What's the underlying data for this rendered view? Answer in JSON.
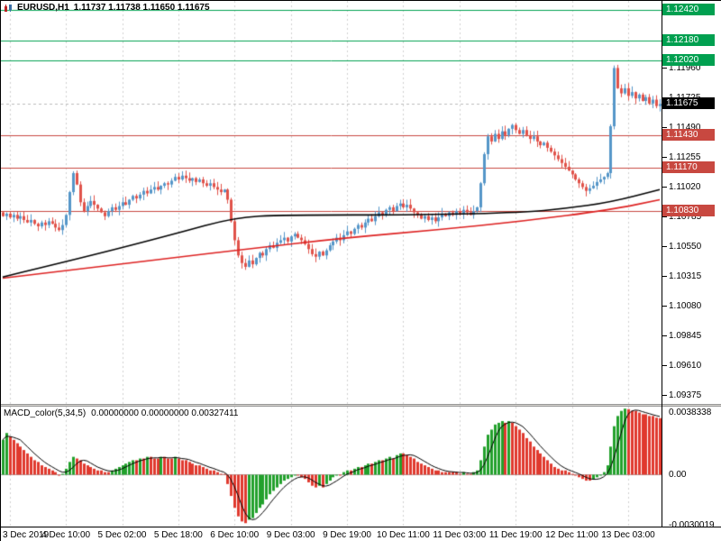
{
  "header": {
    "symbol": "EURUSD,H1",
    "ohlc": "1.11737 1.11738 1.11650 1.11675"
  },
  "macd_header": {
    "name": "MACD_color(5,34,5)",
    "values": "0.00000000 0.00000000 0.00327411"
  },
  "colors": {
    "bull": "#5596c8",
    "bear": "#e0524a",
    "macd_up": "#22a12c",
    "macd_down": "#e0392e",
    "level_green": "#00a050",
    "level_red": "#c84840",
    "price_box": "#000000",
    "grid": "#cfcfcf",
    "ma_fast": "#000000",
    "ma_slow": "#dd2222",
    "bid_line": "#bbbbbb",
    "zero_line": "#a8a8a8"
  },
  "chart_data": [
    {
      "type": "candlestick",
      "title": "EURUSD,H1",
      "symbol": "EURUSD",
      "timeframe": "H1",
      "open": 1.11737,
      "high": 1.11738,
      "low": 1.1165,
      "close": 1.11675,
      "price_range": [
        1.093,
        1.1249
      ],
      "x_labels": [
        "3 Dec 2019",
        "4 Dec 10:00",
        "5 Dec 02:00",
        "5 Dec 18:00",
        "6 Dec 10:00",
        "9 Dec 03:00",
        "9 Dec 19:00",
        "10 Dec 11:00",
        "11 Dec 03:00",
        "11 Dec 19:00",
        "12 Dec 11:00",
        "13 Dec 03:00"
      ],
      "y_ticks": [
        "1.11960",
        "1.11725",
        "1.11490",
        "1.11255",
        "1.11020",
        "1.10785",
        "1.10550",
        "1.10315",
        "1.10080",
        "1.09845",
        "1.09610",
        "1.09375"
      ],
      "levels": [
        {
          "label": "1.12420",
          "value": 1.1242,
          "color": "green"
        },
        {
          "label": "1.12180",
          "value": 1.1218,
          "color": "green"
        },
        {
          "label": "1.12020",
          "value": 1.1202,
          "color": "green"
        },
        {
          "label": "1.11430",
          "value": 1.1143,
          "color": "red"
        },
        {
          "label": "1.11170",
          "value": 1.1117,
          "color": "red"
        },
        {
          "label": "1.10830",
          "value": 1.1083,
          "color": "red"
        }
      ],
      "current_price": {
        "label": "1.11675",
        "value": 1.11675
      },
      "closes": [
        1.1079,
        1.1081,
        1.1078,
        1.108,
        1.1077,
        1.1079,
        1.1076,
        1.1074,
        1.1076,
        1.1073,
        1.1071,
        1.1074,
        1.1072,
        1.1075,
        1.1073,
        1.107,
        1.1068,
        1.1072,
        1.108,
        1.1098,
        1.1113,
        1.1104,
        1.109,
        1.1083,
        1.1087,
        1.1091,
        1.1088,
        1.1085,
        1.1082,
        1.1079,
        1.1083,
        1.1086,
        1.1084,
        1.1087,
        1.109,
        1.1088,
        1.1092,
        1.1095,
        1.1093,
        1.1096,
        1.1099,
        1.1097,
        1.11,
        1.1102,
        1.11,
        1.1103,
        1.1105,
        1.1104,
        1.1107,
        1.111,
        1.1108,
        1.1111,
        1.1109,
        1.1107,
        1.1109,
        1.1106,
        1.1108,
        1.1105,
        1.1103,
        1.1105,
        1.1102,
        1.11,
        1.1098,
        1.11,
        1.1092,
        1.1075,
        1.106,
        1.1048,
        1.1042,
        1.1039,
        1.1044,
        1.1041,
        1.1046,
        1.105,
        1.1048,
        1.1053,
        1.1056,
        1.1054,
        1.1058,
        1.106,
        1.1062,
        1.1059,
        1.1063,
        1.1065,
        1.1062,
        1.106,
        1.1057,
        1.1053,
        1.1049,
        1.1047,
        1.1051,
        1.1048,
        1.1052,
        1.1056,
        1.1059,
        1.1062,
        1.106,
        1.1064,
        1.1067,
        1.1065,
        1.1069,
        1.1072,
        1.107,
        1.1074,
        1.1077,
        1.1075,
        1.1079,
        1.1082,
        1.108,
        1.1084,
        1.1086,
        1.1083,
        1.1087,
        1.1089,
        1.1086,
        1.1088,
        1.1085,
        1.1082,
        1.108,
        1.1077,
        1.1079,
        1.1076,
        1.1078,
        1.1075,
        1.1078,
        1.1081,
        1.1079,
        1.1082,
        1.108,
        1.1083,
        1.1081,
        1.1084,
        1.1082,
        1.108,
        1.1083,
        1.1086,
        1.1105,
        1.1128,
        1.1142,
        1.1138,
        1.1144,
        1.114,
        1.1146,
        1.1143,
        1.1148,
        1.1151,
        1.1147,
        1.1144,
        1.1147,
        1.1143,
        1.114,
        1.1142,
        1.1138,
        1.1135,
        1.1137,
        1.1133,
        1.113,
        1.1127,
        1.1124,
        1.1121,
        1.1118,
        1.1115,
        1.1112,
        1.1108,
        1.1105,
        1.1102,
        1.1099,
        1.1101,
        1.1103,
        1.1106,
        1.1108,
        1.111,
        1.1113,
        1.115,
        1.1196,
        1.118,
        1.1176,
        1.118,
        1.1174,
        1.1177,
        1.1172,
        1.1175,
        1.117,
        1.1173,
        1.1168,
        1.1171,
        1.1166,
        1.11675
      ],
      "ma_black_keypoints": [
        [
          0,
          1.1031
        ],
        [
          24,
          1.1047
        ],
        [
          49,
          1.1065
        ],
        [
          66,
          1.1078
        ],
        [
          80,
          1.108
        ],
        [
          120,
          1.108
        ],
        [
          148,
          1.1082
        ],
        [
          160,
          1.1085
        ],
        [
          173,
          1.109
        ],
        [
          187,
          1.11
        ]
      ],
      "ma_red_keypoints": [
        [
          0,
          1.103
        ],
        [
          24,
          1.1038
        ],
        [
          48,
          1.1046
        ],
        [
          69,
          1.1053
        ],
        [
          98,
          1.1062
        ],
        [
          123,
          1.1068
        ],
        [
          148,
          1.1075
        ],
        [
          173,
          1.1084
        ],
        [
          187,
          1.1092
        ]
      ]
    },
    {
      "type": "bar",
      "name": "MACD_color(5,34,5)",
      "current_values": [
        0.0,
        0.0,
        0.00327411
      ],
      "range": [
        -0.0031,
        0.00395
      ],
      "y_labels": [
        {
          "label": "0.0038338",
          "value": 0.0038338
        },
        {
          "label": "0.00",
          "value": 0
        },
        {
          "label": "-0.0030019",
          "value": -0.0030019
        }
      ],
      "values": [
        0.002,
        0.0024,
        0.0022,
        0.002,
        0.0018,
        0.0016,
        0.0014,
        0.0012,
        0.001,
        0.0008,
        0.0007,
        0.0005,
        0.0004,
        0.0003,
        0.0002,
        0.0001,
        -0.0001,
        0.0,
        0.0003,
        0.0007,
        0.001,
        0.0009,
        0.0008,
        0.0006,
        0.0005,
        0.0004,
        0.0003,
        0.0002,
        0.0002,
        0.0001,
        0.0001,
        0.0002,
        0.0003,
        0.0004,
        0.0005,
        0.0006,
        0.0007,
        0.0008,
        0.0008,
        0.0009,
        0.0009,
        0.001,
        0.001,
        0.0009,
        0.0009,
        0.001,
        0.001,
        0.0009,
        0.0009,
        0.001,
        0.0009,
        0.0008,
        0.0008,
        0.0007,
        0.0006,
        0.0005,
        0.0005,
        0.0004,
        0.0003,
        0.0002,
        0.0002,
        0.0001,
        0.0,
        0.0,
        -0.0006,
        -0.0013,
        -0.002,
        -0.0025,
        -0.0028,
        -0.0029,
        -0.0027,
        -0.0026,
        -0.0023,
        -0.002,
        -0.0018,
        -0.0015,
        -0.0012,
        -0.001,
        -0.0008,
        -0.0006,
        -0.0004,
        -0.0003,
        -0.0002,
        -0.0001,
        -0.0001,
        -0.0002,
        -0.0003,
        -0.0005,
        -0.0007,
        -0.0008,
        -0.0007,
        -0.0008,
        -0.0006,
        -0.0004,
        -0.0002,
        -0.0001,
        -0.0001,
        0.0001,
        0.0002,
        0.0002,
        0.0003,
        0.0004,
        0.0004,
        0.0005,
        0.0006,
        0.0006,
        0.0007,
        0.0008,
        0.0008,
        0.0009,
        0.001,
        0.0009,
        0.0011,
        0.0012,
        0.0012,
        0.0011,
        0.001,
        0.0009,
        0.0007,
        0.0006,
        0.0005,
        0.0004,
        0.0003,
        0.0002,
        0.0002,
        0.0001,
        0.0001,
        0.0001,
        0.0001,
        0.0001,
        0.0,
        0.0001,
        0.0,
        0.0,
        0.0001,
        0.0002,
        0.0008,
        0.0016,
        0.0023,
        0.0026,
        0.0029,
        0.003,
        0.0031,
        0.003,
        0.0031,
        0.003,
        0.0028,
        0.0026,
        0.0024,
        0.0021,
        0.0019,
        0.0016,
        0.0014,
        0.0012,
        0.001,
        0.0008,
        0.0006,
        0.0004,
        0.0003,
        0.0002,
        0.0002,
        0.0001,
        0.0,
        -0.0001,
        -0.0002,
        -0.0003,
        -0.0004,
        -0.0004,
        -0.0003,
        -0.0002,
        -0.0001,
        0.0001,
        0.0005,
        0.0016,
        0.0028,
        0.0034,
        0.0037,
        0.0038338,
        0.0038,
        0.0037,
        0.0037,
        0.0036,
        0.0035,
        0.0035,
        0.0034,
        0.0034,
        0.0033,
        0.0032741
      ]
    }
  ]
}
